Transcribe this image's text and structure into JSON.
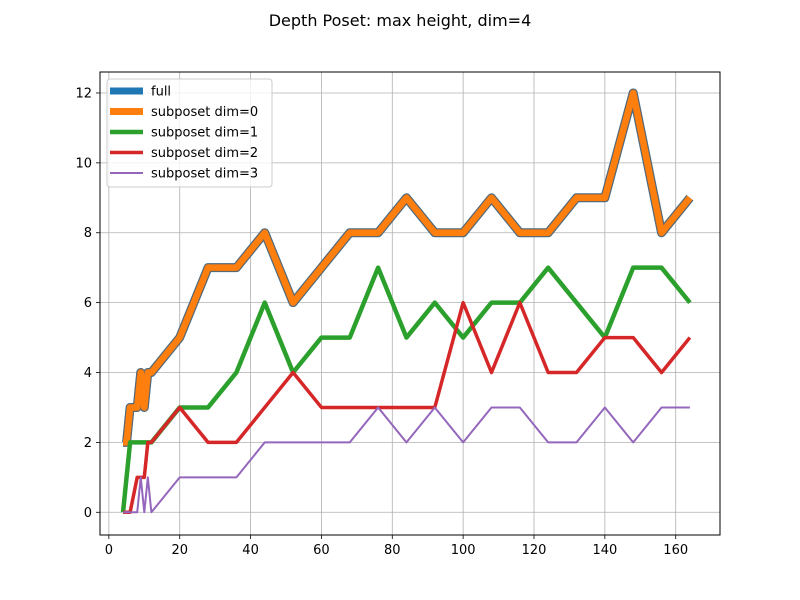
{
  "chart_data": {
    "type": "line",
    "title": "Depth Poset: max height, dim=4",
    "xlabel": "",
    "ylabel": "",
    "xlim": [
      -2.5,
      172.5
    ],
    "ylim": [
      -0.65,
      12.6
    ],
    "xticks": [
      0,
      20,
      40,
      60,
      80,
      100,
      120,
      140,
      160
    ],
    "yticks": [
      0,
      2,
      4,
      6,
      8,
      10,
      12
    ],
    "grid": true,
    "legend_position": "top-left",
    "series": [
      {
        "name": "full",
        "color": "#1f77b4",
        "x": [
          4,
          5,
          6,
          7,
          8,
          9,
          10,
          11,
          12,
          20,
          28,
          36,
          44,
          52,
          60,
          68,
          76,
          84,
          92,
          100,
          108,
          116,
          124,
          132,
          140,
          148,
          156,
          164
        ],
        "y": [
          2,
          2,
          3,
          3,
          3,
          4,
          3,
          4,
          4,
          5,
          7,
          7,
          8,
          6,
          7,
          8,
          8,
          9,
          8,
          8,
          9,
          8,
          8,
          9,
          9,
          12,
          8,
          9
        ]
      },
      {
        "name": "subposet dim=0",
        "color": "#ff7f0e",
        "x": [
          4,
          5,
          6,
          7,
          8,
          9,
          10,
          11,
          12,
          20,
          28,
          36,
          44,
          52,
          60,
          68,
          76,
          84,
          92,
          100,
          108,
          116,
          124,
          132,
          140,
          148,
          156,
          164
        ],
        "y": [
          2,
          2,
          3,
          3,
          3,
          4,
          3,
          4,
          4,
          5,
          7,
          7,
          8,
          6,
          7,
          8,
          8,
          9,
          8,
          8,
          9,
          8,
          8,
          9,
          9,
          12,
          8,
          9
        ]
      },
      {
        "name": "subposet dim=1",
        "color": "#2ca02c",
        "x": [
          4,
          6,
          8,
          12,
          20,
          28,
          36,
          44,
          52,
          60,
          68,
          76,
          84,
          92,
          100,
          108,
          116,
          124,
          132,
          140,
          148,
          156,
          164
        ],
        "y": [
          0,
          2,
          2,
          2,
          3,
          3,
          4,
          6,
          4,
          5,
          5,
          7,
          5,
          6,
          5,
          6,
          6,
          7,
          6,
          5,
          7,
          7,
          6
        ]
      },
      {
        "name": "subposet dim=2",
        "color": "#d62728",
        "x": [
          4,
          6,
          8,
          10,
          11,
          12,
          20,
          28,
          36,
          44,
          52,
          60,
          68,
          76,
          84,
          92,
          100,
          108,
          116,
          124,
          132,
          140,
          148,
          156,
          164
        ],
        "y": [
          0,
          0,
          1,
          1,
          2,
          2,
          3,
          2,
          2,
          3,
          4,
          3,
          3,
          3,
          3,
          3,
          6,
          4,
          6,
          4,
          4,
          5,
          5,
          4,
          5
        ]
      },
      {
        "name": "subposet dim=3",
        "color": "#9467bd",
        "x": [
          4,
          6,
          8,
          9,
          10,
          11,
          12,
          20,
          28,
          36,
          44,
          52,
          60,
          68,
          76,
          84,
          92,
          100,
          108,
          116,
          124,
          132,
          140,
          148,
          156,
          164
        ],
        "y": [
          0,
          0,
          0,
          1,
          0,
          1,
          0,
          1,
          1,
          1,
          2,
          2,
          2,
          2,
          3,
          2,
          3,
          2,
          3,
          3,
          2,
          2,
          3,
          2,
          3,
          3
        ]
      }
    ]
  }
}
